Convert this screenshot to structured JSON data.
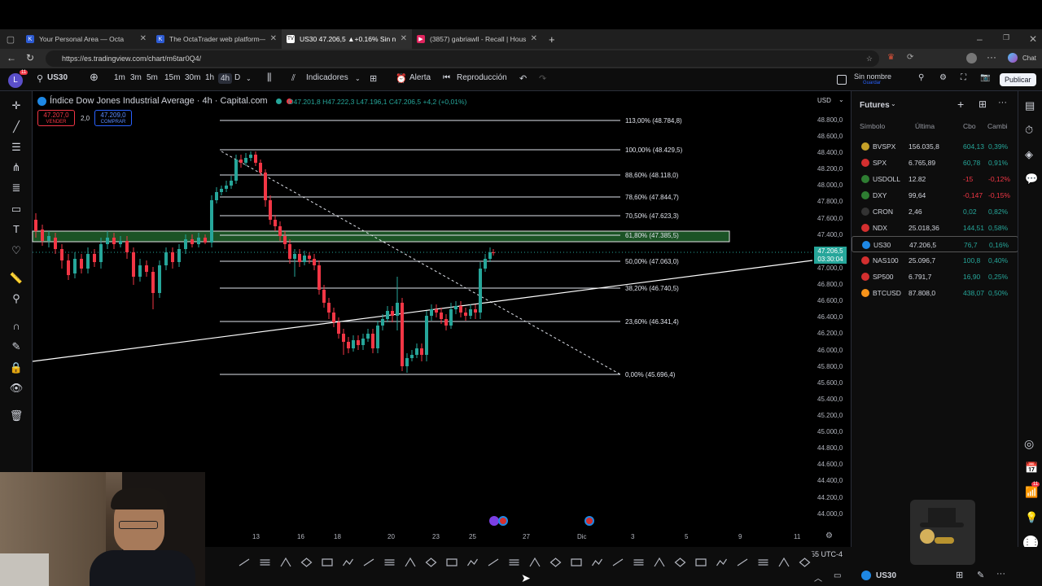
{
  "browser": {
    "tabs": [
      {
        "title": "Your Personal Area — Octa",
        "fav": "K"
      },
      {
        "title": "The OctaTrader web platform—O",
        "fav": "K"
      },
      {
        "title": "US30 47.206,5 ▲+0.16% Sin nom",
        "fav": "TV"
      },
      {
        "title": "(3857) gabriawll - Recall | House",
        "fav": "▶"
      }
    ],
    "url": "https://es.tradingview.com/chart/m6tar0Q4/",
    "chat_label": "Chat"
  },
  "toolbar": {
    "avatar_letter": "L",
    "avatar_badge": "11",
    "symbol": "US30",
    "intervals": [
      "1m",
      "3m",
      "5m",
      "15m",
      "30m",
      "1h",
      "4h",
      "D"
    ],
    "indicators_label": "Indicadores",
    "alert_label": "Alerta",
    "replay_label": "Reproducción",
    "layout_name": "Sin nombre",
    "layout_sub": "Guardar",
    "publish_label": "Publicar"
  },
  "chart": {
    "title": "Índice Dow Jones Industrial Average · 4h · Capital.com",
    "ohlc": {
      "o": "O47.201,8",
      "h": "H47.222,3",
      "l": "L47.196,1",
      "c": "C47.206,5",
      "chg": "+4,2 (+0,01%)"
    },
    "sell_price": "47.207,0",
    "sell_label": "VENDER",
    "spread": "2,0",
    "buy_price": "47.209,0",
    "buy_label": "COMPRAR",
    "currency": "USD",
    "price_ticks": [
      "48.800,0",
      "48.600,0",
      "48.400,0",
      "48.200,0",
      "48.000,0",
      "47.800,0",
      "47.600,0",
      "47.400,0",
      "47.000,0",
      "46.800,0",
      "46.600,0",
      "46.400,0",
      "46.200,0",
      "46.000,0",
      "45.800,0",
      "45.600,0",
      "45.400,0",
      "45.200,0",
      "45.000,0",
      "44.800,0",
      "44.600,0",
      "44.400,0",
      "44.200,0",
      "44.000,0"
    ],
    "last_price": "47.206,5",
    "countdown": "03:30:04",
    "time_ticks": [
      "13",
      "16",
      "18",
      "20",
      "23",
      "25",
      "27",
      "Dic",
      "3",
      "5",
      "9",
      "11"
    ],
    "timezone": "55 UTC-4",
    "fib_levels": [
      "113,00% (48.784,8)",
      "100,00% (48.429,5)",
      "88,60% (48.118,0)",
      "78,60% (47.844,7)",
      "70,50% (47.623,3)",
      "61,80% (47.385,5)",
      "50,00% (47.063,0)",
      "38,20% (46.740,5)",
      "23,60% (46.341,4)",
      "0,00% (45.696,4)"
    ],
    "colors": {
      "up": "#26a69a",
      "down": "#f23645",
      "fib_zone": "#1f5c2a"
    }
  },
  "watchlist": {
    "title": "Futures",
    "columns": [
      "Símbolo",
      "Última",
      "Cbo",
      "Cambi"
    ],
    "rows": [
      {
        "symbol": "BVSPX",
        "last": "156.035,8",
        "chg": "604,13",
        "pct": "0,39%",
        "dir": "up",
        "color": "#c5a028"
      },
      {
        "symbol": "SPX",
        "last": "6.765,89",
        "chg": "60,78",
        "pct": "0,91%",
        "dir": "up",
        "color": "#d32f2f"
      },
      {
        "symbol": "USDOLL",
        "last": "12.82",
        "chg": "-15",
        "pct": "-0,12%",
        "dir": "down",
        "color": "#2e7d32"
      },
      {
        "symbol": "DXY",
        "last": "99,64",
        "chg": "-0,147",
        "pct": "-0,15%",
        "dir": "down",
        "color": "#2e7d32"
      },
      {
        "symbol": "CRON",
        "last": "2,46",
        "chg": "0,02",
        "pct": "0,82%",
        "dir": "up",
        "color": "#333333"
      },
      {
        "symbol": "NDX",
        "last": "25.018,36",
        "chg": "144,51",
        "pct": "0,58%",
        "dir": "up",
        "color": "#d32f2f"
      },
      {
        "symbol": "US30",
        "last": "47.206,5",
        "chg": "76,7",
        "pct": "0,16%",
        "dir": "up",
        "color": "#1e88e5"
      },
      {
        "symbol": "NAS100",
        "last": "25.096,7",
        "chg": "100,8",
        "pct": "0,40%",
        "dir": "up",
        "color": "#d32f2f"
      },
      {
        "symbol": "SP500",
        "last": "6.791,7",
        "chg": "16,90",
        "pct": "0,25%",
        "dir": "up",
        "color": "#d32f2f"
      },
      {
        "symbol": "BTCUSD",
        "last": "87.808,0",
        "chg": "438,07",
        "pct": "0,50%",
        "dir": "up",
        "color": "#f7931a"
      }
    ]
  },
  "bottom": {
    "symbol": "US30",
    "notif_badge": "11"
  }
}
